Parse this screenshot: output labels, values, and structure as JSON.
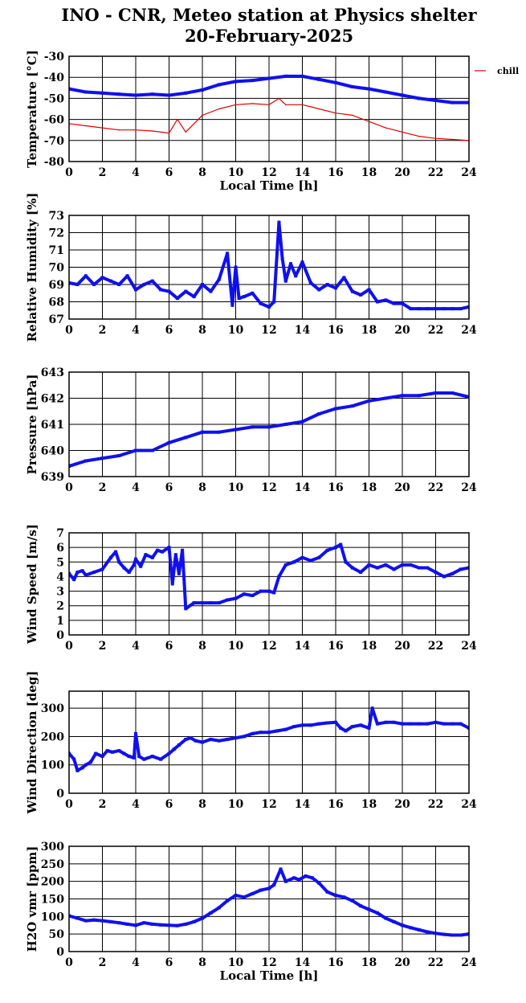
{
  "title": {
    "line1": "INO - CNR, Meteo station at Physics shelter",
    "line2": "20-February-2025"
  },
  "colors": {
    "primary": "#1010ee",
    "chill": "#e00000",
    "grid": "#000000"
  },
  "chart_data": [
    {
      "type": "line",
      "ylabel": "Temperature [°C]",
      "xlabel": "Local Time [h]",
      "ylim": [
        -80,
        -30
      ],
      "yticks": [
        -80,
        -70,
        -60,
        -50,
        -40,
        -30
      ],
      "xlim": [
        0,
        24
      ],
      "xticks": [
        0,
        2,
        4,
        6,
        8,
        10,
        12,
        14,
        16,
        18,
        20,
        22,
        24
      ],
      "legend": {
        "entries": [
          "chill"
        ],
        "placement": "right-outside"
      },
      "series": [
        {
          "key": "temperature",
          "color": "#1010ee",
          "width": 4,
          "x": [
            0,
            1,
            2,
            3,
            4,
            5,
            6,
            7,
            8,
            9,
            10,
            11,
            12,
            13,
            14,
            15,
            16,
            17,
            18,
            19,
            20,
            21,
            22,
            23,
            24
          ],
          "y": [
            -45.5,
            -47,
            -47.5,
            -48,
            -48.5,
            -48,
            -48.5,
            -47.5,
            -46,
            -43.5,
            -42,
            -41.5,
            -40.5,
            -39.5,
            -39.5,
            -41,
            -42.5,
            -44.5,
            -45.5,
            -47,
            -48.5,
            -50,
            -51,
            -52,
            -52
          ]
        },
        {
          "key": "chill",
          "name": "chill",
          "color": "#e00000",
          "width": 1.2,
          "x": [
            0,
            1,
            2,
            3,
            4,
            5,
            6,
            6.5,
            7,
            8,
            9,
            10,
            11,
            12,
            12.6,
            13,
            14,
            15,
            16,
            17,
            18,
            19,
            20,
            21,
            22,
            23,
            24
          ],
          "y": [
            -62,
            -63,
            -64,
            -65,
            -65,
            -65.5,
            -66.5,
            -60,
            -66,
            -58,
            -55,
            -53,
            -52.5,
            -53,
            -50,
            -53,
            -53,
            -55,
            -57,
            -58,
            -61,
            -64,
            -66,
            -68,
            -69,
            -69.5,
            -70
          ]
        }
      ]
    },
    {
      "type": "scatter",
      "ylabel": "Relative Humidity [%]",
      "ylim": [
        67,
        73
      ],
      "yticks": [
        67,
        68,
        69,
        70,
        71,
        72,
        73
      ],
      "xlim": [
        0,
        24
      ],
      "xticks": [
        0,
        2,
        4,
        6,
        8,
        10,
        12,
        14,
        16,
        18,
        20,
        22,
        24
      ],
      "series": [
        {
          "key": "humidity",
          "color": "#1010ee",
          "x": [
            0,
            0.5,
            1,
            1.5,
            2,
            2.5,
            3,
            3.5,
            4,
            4.5,
            5,
            5.5,
            6,
            6.5,
            7,
            7.5,
            8,
            8.5,
            9,
            9.5,
            9.8,
            10,
            10.2,
            10.5,
            11,
            11.5,
            12,
            12.3,
            12.6,
            12.8,
            13,
            13.3,
            13.6,
            14,
            14.5,
            15,
            15.5,
            16,
            16.5,
            17,
            17.5,
            18,
            18.5,
            19,
            19.5,
            20,
            20.5,
            21,
            21.5,
            22,
            22.5,
            23,
            23.5,
            24
          ],
          "y": [
            69.1,
            69,
            69.5,
            69,
            69.4,
            69.2,
            69,
            69.5,
            68.7,
            69,
            69.2,
            68.7,
            68.6,
            68.2,
            68.6,
            68.3,
            69,
            68.6,
            69.3,
            70.8,
            67.8,
            70,
            68.2,
            68.3,
            68.5,
            67.9,
            67.7,
            68,
            72.6,
            70.5,
            69.2,
            70.2,
            69.5,
            70.3,
            69.1,
            68.7,
            69,
            68.8,
            69.4,
            68.6,
            68.4,
            68.7,
            68,
            68.1,
            67.9,
            67.9,
            67.6,
            67.6,
            67.6,
            67.6,
            67.6,
            67.6,
            67.6,
            67.7
          ]
        }
      ]
    },
    {
      "type": "scatter",
      "ylabel": "Pressure [hPa]",
      "ylim": [
        639,
        643
      ],
      "yticks": [
        639,
        640,
        641,
        642,
        643
      ],
      "xlim": [
        0,
        24
      ],
      "xticks": [
        0,
        2,
        4,
        6,
        8,
        10,
        12,
        14,
        16,
        18,
        20,
        22,
        24
      ],
      "series": [
        {
          "key": "pressure",
          "color": "#1010ee",
          "x": [
            0,
            1,
            2,
            3,
            4,
            5,
            6,
            7,
            8,
            9,
            10,
            11,
            12,
            13,
            14,
            15,
            16,
            17,
            18,
            19,
            20,
            21,
            22,
            23,
            24
          ],
          "y": [
            639.4,
            639.6,
            639.7,
            639.8,
            640,
            640,
            640.3,
            640.5,
            640.7,
            640.7,
            640.8,
            640.9,
            640.9,
            641,
            641.1,
            641.4,
            641.6,
            641.7,
            641.9,
            642,
            642.1,
            642.1,
            642.2,
            642.2,
            642.05
          ]
        }
      ]
    },
    {
      "type": "scatter",
      "ylabel": "Wind Speed [m/s]",
      "ylim": [
        0,
        7
      ],
      "yticks": [
        0,
        1,
        2,
        3,
        4,
        5,
        6,
        7
      ],
      "xlim": [
        0,
        24
      ],
      "xticks": [
        0,
        2,
        4,
        6,
        8,
        10,
        12,
        14,
        16,
        18,
        20,
        22,
        24
      ],
      "series": [
        {
          "key": "wind_speed",
          "color": "#1010ee",
          "x": [
            0,
            0.3,
            0.5,
            0.8,
            1,
            1.5,
            2,
            2.5,
            2.8,
            3,
            3.3,
            3.6,
            3.9,
            4,
            4.3,
            4.6,
            5,
            5.3,
            5.6,
            6,
            6.2,
            6.4,
            6.6,
            6.8,
            7,
            7.5,
            8,
            8.5,
            9,
            9.5,
            10,
            10.5,
            11,
            11.5,
            12,
            12.3,
            12.6,
            13,
            13.5,
            14,
            14.5,
            15,
            15.5,
            16,
            16.3,
            16.6,
            17,
            17.5,
            18,
            18.5,
            19,
            19.5,
            20,
            20.5,
            21,
            21.5,
            22,
            22.5,
            23,
            23.5,
            24
          ],
          "y": [
            4.2,
            3.8,
            4.3,
            4.4,
            4.1,
            4.3,
            4.5,
            5.3,
            5.7,
            5,
            4.6,
            4.3,
            4.8,
            5.2,
            4.7,
            5.5,
            5.3,
            5.8,
            5.7,
            6,
            3.5,
            5.5,
            4.2,
            5.8,
            1.8,
            2.2,
            2.2,
            2.2,
            2.2,
            2.4,
            2.5,
            2.8,
            2.7,
            3,
            3,
            2.9,
            4,
            4.8,
            5,
            5.3,
            5.1,
            5.3,
            5.8,
            6,
            6.2,
            5,
            4.6,
            4.3,
            4.8,
            4.6,
            4.8,
            4.5,
            4.8,
            4.8,
            4.6,
            4.6,
            4.3,
            4,
            4.2,
            4.5,
            4.6
          ]
        }
      ]
    },
    {
      "type": "scatter",
      "ylabel": "Wind Direction [deg]",
      "ylim": [
        0,
        360
      ],
      "yticks": [
        0,
        100,
        200,
        300
      ],
      "xlim": [
        0,
        24
      ],
      "xticks": [
        0,
        2,
        4,
        6,
        8,
        10,
        12,
        14,
        16,
        18,
        20,
        22,
        24
      ],
      "series": [
        {
          "key": "wind_direction",
          "color": "#1010ee",
          "x": [
            0,
            0.3,
            0.5,
            0.8,
            1,
            1.3,
            1.6,
            2,
            2.3,
            2.6,
            3,
            3.3,
            3.6,
            3.9,
            4,
            4.2,
            4.5,
            5,
            5.5,
            6,
            6.3,
            6.6,
            7,
            7.3,
            7.6,
            8,
            8.5,
            9,
            9.5,
            10,
            10.5,
            11,
            11.5,
            12,
            12.5,
            13,
            13.5,
            14,
            14.5,
            15,
            15.5,
            16,
            16.3,
            16.6,
            17,
            17.5,
            18,
            18.2,
            18.5,
            19,
            19.5,
            20,
            20.5,
            21,
            21.5,
            22,
            22.5,
            23,
            23.5,
            24
          ],
          "y": [
            140,
            120,
            80,
            90,
            100,
            110,
            140,
            130,
            150,
            145,
            150,
            140,
            130,
            125,
            210,
            130,
            120,
            130,
            120,
            140,
            155,
            170,
            190,
            195,
            185,
            180,
            190,
            185,
            190,
            195,
            200,
            210,
            215,
            215,
            220,
            225,
            235,
            240,
            240,
            245,
            248,
            250,
            230,
            220,
            235,
            240,
            230,
            300,
            245,
            250,
            250,
            245,
            245,
            245,
            245,
            250,
            245,
            245,
            245,
            230
          ]
        }
      ]
    },
    {
      "type": "line",
      "ylabel": "H2O vmr [ppm]",
      "xlabel": "Local Time [h]",
      "ylim": [
        0,
        300
      ],
      "yticks": [
        0,
        50,
        100,
        150,
        200,
        250,
        300
      ],
      "xlim": [
        0,
        24
      ],
      "xticks": [
        0,
        2,
        4,
        6,
        8,
        10,
        12,
        14,
        16,
        18,
        20,
        22,
        24
      ],
      "series": [
        {
          "key": "h2o",
          "color": "#1010ee",
          "width": 4,
          "x": [
            0,
            0.5,
            1,
            1.5,
            2,
            2.5,
            3,
            3.5,
            4,
            4.5,
            5,
            5.5,
            6,
            6.5,
            7,
            7.5,
            8,
            8.5,
            9,
            9.5,
            10,
            10.5,
            11,
            11.5,
            12,
            12.3,
            12.7,
            13,
            13.5,
            13.8,
            14.2,
            14.6,
            15,
            15.5,
            16,
            16.5,
            17,
            17.5,
            18,
            18.5,
            19,
            19.5,
            20,
            20.5,
            21,
            21.5,
            22,
            22.5,
            23,
            23.5,
            24
          ],
          "y": [
            102,
            95,
            88,
            90,
            88,
            85,
            82,
            78,
            75,
            82,
            78,
            76,
            75,
            74,
            78,
            85,
            95,
            110,
            125,
            145,
            160,
            155,
            165,
            175,
            180,
            190,
            235,
            200,
            210,
            205,
            215,
            210,
            195,
            170,
            160,
            155,
            145,
            130,
            120,
            110,
            95,
            85,
            75,
            68,
            62,
            56,
            52,
            49,
            47,
            47,
            50
          ]
        }
      ]
    }
  ]
}
